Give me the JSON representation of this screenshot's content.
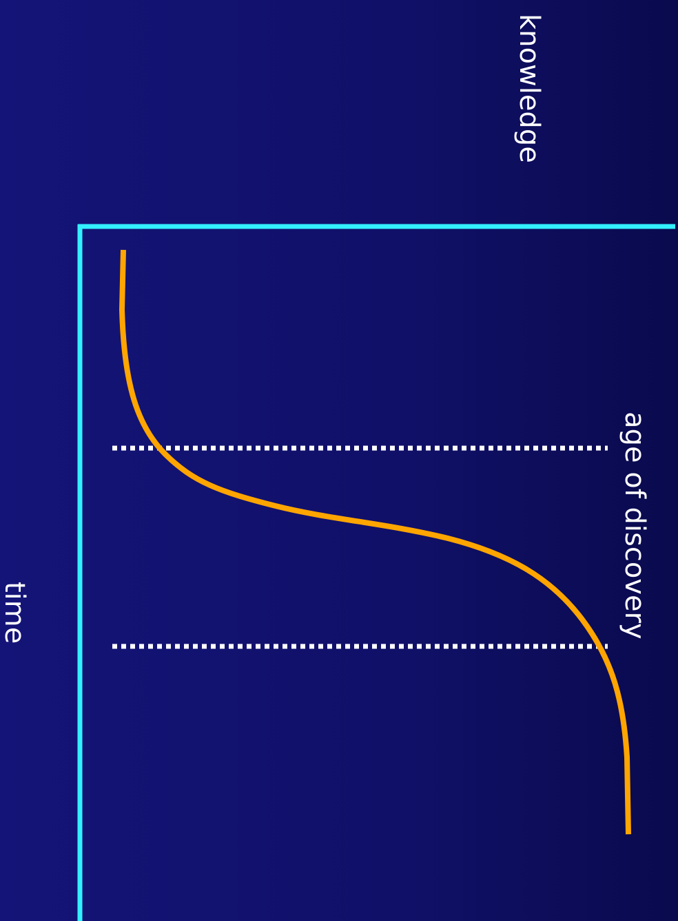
{
  "diagram": {
    "y_axis_label": "knowledge",
    "x_axis_label": "time",
    "annotation": "age of discovery",
    "colors": {
      "background": "#101068",
      "axes": "#33f0ff",
      "curve": "#ffa500",
      "markers": "#ffffff"
    },
    "curve_shape": "s-curve",
    "markers": "two dotted lines bounding the steep rise"
  }
}
